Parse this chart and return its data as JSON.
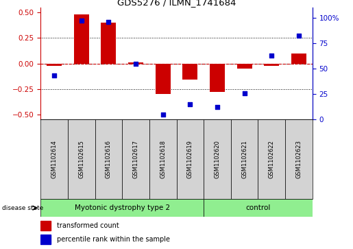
{
  "title": "GDS5276 / ILMN_1741684",
  "categories": [
    "GSM1102614",
    "GSM1102615",
    "GSM1102616",
    "GSM1102617",
    "GSM1102618",
    "GSM1102619",
    "GSM1102620",
    "GSM1102621",
    "GSM1102622",
    "GSM1102623"
  ],
  "red_values": [
    -0.02,
    0.48,
    0.4,
    0.01,
    -0.3,
    -0.16,
    -0.28,
    -0.05,
    -0.02,
    0.1
  ],
  "blue_values": [
    43,
    97,
    96,
    55,
    5,
    15,
    12,
    26,
    63,
    82
  ],
  "group1_label": "Myotonic dystrophy type 2",
  "group1_count": 6,
  "group2_label": "control",
  "group2_count": 4,
  "ylim_left": [
    -0.55,
    0.55
  ],
  "ylim_right": [
    0,
    110
  ],
  "yticks_left": [
    -0.5,
    -0.25,
    0,
    0.25,
    0.5
  ],
  "yticks_right": [
    0,
    25,
    50,
    75,
    100
  ],
  "ytick_labels_right": [
    "0",
    "25",
    "50",
    "75",
    "100%"
  ],
  "red_color": "#cc0000",
  "blue_color": "#0000cc",
  "bar_width": 0.55,
  "grid_color": "black",
  "zero_line_color": "#cc0000",
  "group_bg_color": "#90ee90",
  "sample_bg_color": "#d3d3d3",
  "disease_state_label": "disease state",
  "legend_red_label": "transformed count",
  "legend_blue_label": "percentile rank within the sample"
}
